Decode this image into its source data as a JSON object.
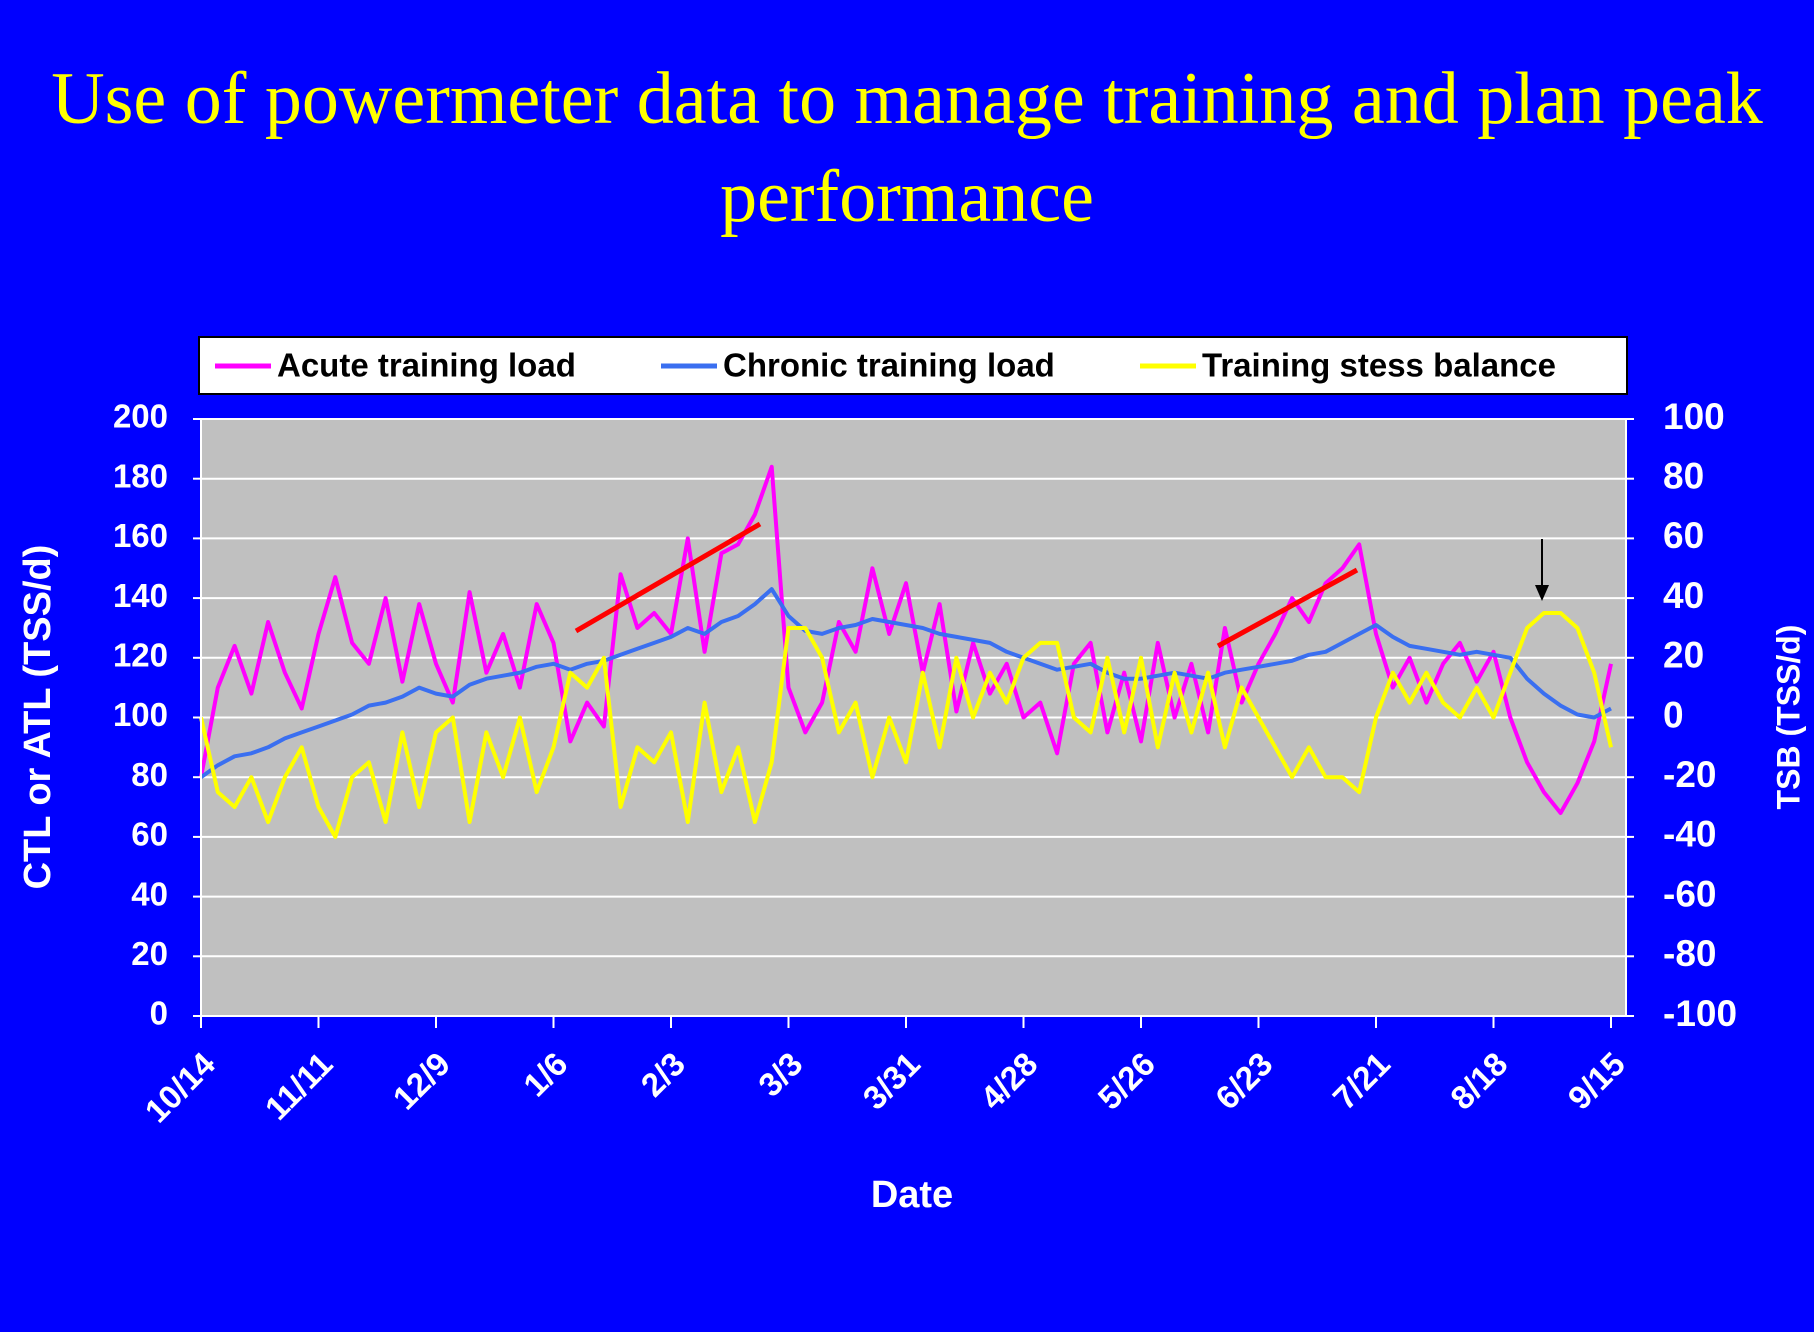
{
  "chart_data": {
    "type": "line",
    "title": "Use of powermeter data to manage training and plan peak performance",
    "x_label": "Date",
    "y_label": "CTL or ATL (TSS/d)",
    "y2_label": "TSB (TSS/d)",
    "categories": [
      "10/14",
      null,
      null,
      null,
      null,
      null,
      null,
      "11/11",
      null,
      null,
      null,
      null,
      null,
      null,
      "12/9",
      null,
      null,
      null,
      null,
      null,
      null,
      "1/6",
      null,
      null,
      null,
      null,
      null,
      null,
      "2/3",
      null,
      null,
      null,
      null,
      null,
      null,
      "3/3",
      null,
      null,
      null,
      null,
      null,
      null,
      "3/31",
      null,
      null,
      null,
      null,
      null,
      null,
      "4/28",
      null,
      null,
      null,
      null,
      null,
      null,
      "5/26",
      null,
      null,
      null,
      null,
      null,
      null,
      "6/23",
      null,
      null,
      null,
      null,
      null,
      null,
      "7/21",
      null,
      null,
      null,
      null,
      null,
      null,
      "8/18",
      null,
      null,
      null,
      null,
      null,
      null,
      "9/15"
    ],
    "series": [
      {
        "name": "Acute training load",
        "color": "#ff00ff",
        "values": [
          80,
          110,
          124,
          108,
          132,
          115,
          103,
          128,
          147,
          125,
          118,
          140,
          112,
          138,
          118,
          105,
          142,
          115,
          128,
          110,
          138,
          125,
          92,
          105,
          97,
          148,
          130,
          135,
          128,
          160,
          122,
          155,
          158,
          168,
          184,
          110,
          95,
          105,
          132,
          122,
          150,
          128,
          145,
          115,
          138,
          102,
          125,
          108,
          118,
          100,
          105,
          88,
          118,
          125,
          95,
          115,
          92,
          125,
          100,
          118,
          95,
          130,
          105,
          118,
          128,
          140,
          132,
          145,
          150,
          158,
          128,
          110,
          120,
          105,
          118,
          125,
          112,
          122,
          100,
          85,
          75,
          68,
          78,
          92,
          118
        ]
      },
      {
        "name": "Chronic training load",
        "color": "#3a6ff0",
        "values": [
          80,
          84,
          87,
          88,
          90,
          93,
          95,
          97,
          99,
          101,
          104,
          105,
          107,
          110,
          108,
          107,
          111,
          113,
          114,
          115,
          117,
          118,
          116,
          118,
          119,
          121,
          123,
          125,
          127,
          130,
          128,
          132,
          134,
          138,
          143,
          134,
          129,
          128,
          130,
          131,
          133,
          132,
          131,
          130,
          128,
          127,
          126,
          125,
          122,
          120,
          118,
          116,
          117,
          118,
          115,
          113,
          113,
          114,
          115,
          114,
          113,
          115,
          116,
          117,
          118,
          119,
          121,
          122,
          125,
          128,
          131,
          127,
          124,
          123,
          122,
          121,
          122,
          121,
          120,
          113,
          108,
          104,
          101,
          100,
          103
        ]
      },
      {
        "name": "Training stess balance",
        "color": "#ffff00",
        "axis": "y2",
        "values": [
          0,
          -25,
          -30,
          -20,
          -35,
          -20,
          -10,
          -30,
          -40,
          -20,
          -15,
          -35,
          -5,
          -30,
          -5,
          0,
          -35,
          -5,
          -20,
          0,
          -25,
          -10,
          15,
          10,
          20,
          -30,
          -10,
          -15,
          -5,
          -35,
          5,
          -25,
          -10,
          -35,
          -15,
          30,
          30,
          20,
          -5,
          5,
          -20,
          0,
          -15,
          15,
          -10,
          20,
          0,
          15,
          5,
          20,
          25,
          25,
          0,
          -5,
          20,
          -5,
          20,
          -10,
          15,
          -5,
          15,
          -10,
          10,
          0,
          -10,
          -20,
          -10,
          -20,
          -20,
          -25,
          0,
          15,
          5,
          15,
          5,
          0,
          10,
          0,
          15,
          30,
          35,
          35,
          30,
          15,
          -10
        ]
      }
    ],
    "ylim": [
      0,
      200
    ],
    "yticks": [
      0,
      20,
      40,
      60,
      80,
      100,
      120,
      140,
      160,
      180,
      200
    ],
    "y2lim": [
      -100,
      100
    ],
    "y2ticks": [
      -100,
      -80,
      -60,
      -40,
      -20,
      0,
      20,
      40,
      60,
      80,
      100
    ],
    "grid": true,
    "legend": "top"
  }
}
